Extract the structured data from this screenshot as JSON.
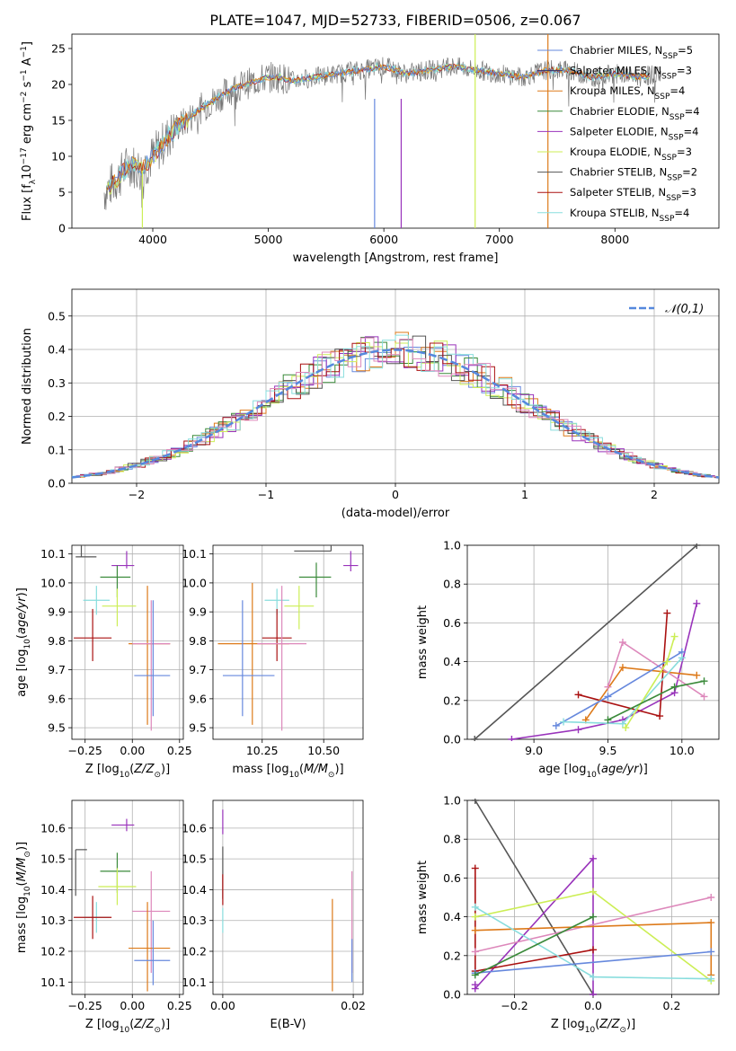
{
  "colors": {
    "Chabrier MILES": "#6688dd",
    "Salpeter MILES": "#33336b",
    "Kroupa MILES": "#dd7a1a",
    "Chabrier ELODIE": "#3a8a3a",
    "Salpeter ELODIE": "#9933bb",
    "Kroupa ELODIE": "#ccee55",
    "Chabrier STELIB": "#555555",
    "Salpeter STELIB": "#aa1111",
    "Kroupa STELIB": "#88dddd",
    "pink": "#dd88bb",
    "gaussian": "#5588dd",
    "grid": "#b0b0b0"
  },
  "chart_data": [
    {
      "id": "spectrum",
      "type": "line",
      "title": "PLATE=1047, MJD=52733, FIBERID=0506, z=0.067",
      "xlabel": "wavelength [Angstrom, rest frame]",
      "ylabel": "Flux [f_λ 10^-17 erg cm^-2 s^-1 A^-1]",
      "xlim": [
        3300,
        8900
      ],
      "ylim": [
        0,
        27
      ],
      "xticks": [
        4000,
        5000,
        6000,
        7000,
        8000
      ],
      "yticks": [
        0,
        5,
        10,
        15,
        20,
        25
      ],
      "legend_position": "top-right",
      "legend": [
        {
          "name": "Chabrier MILES",
          "nssp": "5"
        },
        {
          "name": "Salpeter MILES",
          "nssp": "3"
        },
        {
          "name": "Kroupa MILES",
          "nssp": "4"
        },
        {
          "name": "Chabrier ELODIE",
          "nssp": "4"
        },
        {
          "name": "Salpeter ELODIE",
          "nssp": "4"
        },
        {
          "name": "Kroupa ELODIE",
          "nssp": "3"
        },
        {
          "name": "Chabrier STELIB",
          "nssp": "2"
        },
        {
          "name": "Salpeter STELIB",
          "nssp": "3"
        },
        {
          "name": "Kroupa STELIB",
          "nssp": "4"
        }
      ],
      "continuum": [
        [
          3580,
          5
        ],
        [
          3700,
          7
        ],
        [
          3800,
          9
        ],
        [
          3900,
          8
        ],
        [
          4000,
          10
        ],
        [
          4100,
          12
        ],
        [
          4200,
          14
        ],
        [
          4300,
          15
        ],
        [
          4400,
          16.5
        ],
        [
          4500,
          17.5
        ],
        [
          4600,
          18.5
        ],
        [
          4700,
          19.5
        ],
        [
          4800,
          20
        ],
        [
          4900,
          20.5
        ],
        [
          5000,
          21
        ],
        [
          5100,
          21
        ],
        [
          5200,
          20.5
        ],
        [
          5400,
          21
        ],
        [
          5600,
          21.5
        ],
        [
          5800,
          22
        ],
        [
          6000,
          22.5
        ],
        [
          6200,
          21.5
        ],
        [
          6400,
          22
        ],
        [
          6600,
          22.5
        ],
        [
          6800,
          22
        ],
        [
          7000,
          21.5
        ],
        [
          7200,
          21
        ],
        [
          7400,
          22
        ],
        [
          7600,
          22
        ],
        [
          7800,
          21
        ],
        [
          8000,
          21.5
        ],
        [
          8200,
          21
        ],
        [
          8400,
          21.5
        ]
      ]
    },
    {
      "id": "residuals",
      "type": "line",
      "xlabel": "(data-model)/error",
      "ylabel": "Normed distribution",
      "xlim": [
        -2.5,
        2.5
      ],
      "ylim": [
        0,
        0.58
      ],
      "xticks": [
        -2,
        -1,
        0,
        1,
        2
      ],
      "yticks": [
        0.0,
        0.1,
        0.2,
        0.3,
        0.4,
        0.5
      ],
      "legend": "𝒩(0,1)",
      "legend_position": "top-right",
      "gaussian": {
        "mu": 0,
        "sigma": 1
      }
    },
    {
      "id": "age-Z",
      "type": "scatter",
      "xlabel": "Z [log10(Z/Z⊙)]",
      "ylabel": "age [log10(age/yr)]",
      "xlim": [
        -0.32,
        0.27
      ],
      "ylim": [
        9.46,
        10.13
      ],
      "xticks": [
        -0.25,
        0.0,
        0.25
      ],
      "yticks": [
        9.5,
        9.6,
        9.7,
        9.8,
        9.9,
        10.0,
        10.1
      ],
      "points": [
        {
          "c": "Chabrier STELIB",
          "x": -0.27,
          "y": 10.09,
          "dx": [
            0.03,
            0.08
          ],
          "dy": [
            0.0,
            0.05
          ]
        },
        {
          "c": "Salpeter ELODIE",
          "x": -0.03,
          "y": 10.06,
          "dx": [
            0.08,
            0.04
          ],
          "dy": [
            0.01,
            0.05
          ]
        },
        {
          "c": "Chabrier ELODIE",
          "x": -0.08,
          "y": 10.02,
          "dx": [
            0.09,
            0.07
          ],
          "dy": [
            0.07,
            0.04
          ]
        },
        {
          "c": "Kroupa STELIB",
          "x": -0.19,
          "y": 9.94,
          "dx": [
            0.07,
            0.07
          ],
          "dy": [
            0.05,
            0.05
          ]
        },
        {
          "c": "Kroupa ELODIE",
          "x": -0.08,
          "y": 9.92,
          "dx": [
            0.08,
            0.1
          ],
          "dy": [
            0.07,
            0.06
          ]
        },
        {
          "c": "Salpeter STELIB",
          "x": -0.21,
          "y": 9.81,
          "dx": [
            0.1,
            0.1
          ],
          "dy": [
            0.08,
            0.1
          ]
        },
        {
          "c": "Kroupa MILES",
          "x": 0.08,
          "y": 9.79,
          "dx": [
            0.1,
            0.12
          ],
          "dy": [
            0.28,
            0.2
          ]
        },
        {
          "c": "pink",
          "x": 0.1,
          "y": 9.79,
          "dx": [
            0.1,
            0.1
          ],
          "dy": [
            0.3,
            0.15
          ]
        },
        {
          "c": "Chabrier MILES",
          "x": 0.11,
          "y": 9.68,
          "dx": [
            0.1,
            0.09
          ],
          "dy": [
            0.14,
            0.26
          ]
        }
      ]
    },
    {
      "id": "age-mass",
      "type": "scatter",
      "xlabel": "mass [log10(M/M⊙)]",
      "ylabel": "",
      "xlim": [
        10.05,
        10.66
      ],
      "ylim": [
        9.46,
        10.13
      ],
      "xticks": [
        10.25,
        10.5
      ],
      "yticks": [
        9.5,
        9.6,
        9.7,
        9.8,
        9.9,
        10.0,
        10.1
      ],
      "points": [
        {
          "c": "Chabrier STELIB",
          "x": 10.53,
          "y": 10.11,
          "dx": [
            0.15,
            0.0
          ],
          "dy": [
            0.0,
            0.18
          ]
        },
        {
          "c": "Salpeter ELODIE",
          "x": 10.61,
          "y": 10.06,
          "dx": [
            0.03,
            0.03
          ],
          "dy": [
            0.02,
            0.05
          ]
        },
        {
          "c": "Chabrier ELODIE",
          "x": 10.47,
          "y": 10.02,
          "dx": [
            0.07,
            0.06
          ],
          "dy": [
            0.07,
            0.05
          ]
        },
        {
          "c": "Kroupa STELIB",
          "x": 10.31,
          "y": 9.94,
          "dx": [
            0.05,
            0.05
          ],
          "dy": [
            0.05,
            0.04
          ]
        },
        {
          "c": "Kroupa ELODIE",
          "x": 10.4,
          "y": 9.92,
          "dx": [
            0.06,
            0.06
          ],
          "dy": [
            0.08,
            0.07
          ]
        },
        {
          "c": "Salpeter STELIB",
          "x": 10.31,
          "y": 9.81,
          "dx": [
            0.06,
            0.06
          ],
          "dy": [
            0.08,
            0.1
          ]
        },
        {
          "c": "Kroupa MILES",
          "x": 10.21,
          "y": 9.79,
          "dx": [
            0.14,
            0.15
          ],
          "dy": [
            0.28,
            0.21
          ]
        },
        {
          "c": "pink",
          "x": 10.33,
          "y": 9.79,
          "dx": [
            0.1,
            0.1
          ],
          "dy": [
            0.3,
            0.2
          ]
        },
        {
          "c": "Chabrier MILES",
          "x": 10.17,
          "y": 9.68,
          "dx": [
            0.08,
            0.13
          ],
          "dy": [
            0.14,
            0.26
          ]
        }
      ]
    },
    {
      "id": "weight-age",
      "type": "line",
      "xlabel": "age [log10(age/yr)]",
      "ylabel": "mass weight",
      "xlim": [
        8.55,
        10.25
      ],
      "ylim": [
        0,
        1
      ],
      "xticks": [
        9.0,
        9.5,
        10.0
      ],
      "yticks": [
        0.0,
        0.2,
        0.4,
        0.6,
        0.8,
        1.0
      ],
      "series": [
        {
          "c": "Chabrier STELIB",
          "x": [
            8.6,
            10.1
          ],
          "y": [
            0.0,
            1.0
          ]
        },
        {
          "c": "Salpeter ELODIE",
          "x": [
            8.85,
            9.3,
            9.6,
            9.95,
            10.1
          ],
          "y": [
            0.0,
            0.05,
            0.1,
            0.24,
            0.7
          ]
        },
        {
          "c": "Salpeter STELIB",
          "x": [
            9.3,
            9.85,
            9.9
          ],
          "y": [
            0.23,
            0.12,
            0.65
          ]
        },
        {
          "c": "Kroupa MILES",
          "x": [
            9.35,
            9.6,
            10.1
          ],
          "y": [
            0.1,
            0.37,
            0.33
          ]
        },
        {
          "c": "pink",
          "x": [
            9.5,
            9.6,
            10.15
          ],
          "y": [
            0.27,
            0.5,
            0.22
          ]
        },
        {
          "c": "Chabrier MILES",
          "x": [
            9.15,
            9.5,
            10.0
          ],
          "y": [
            0.07,
            0.22,
            0.45
          ]
        },
        {
          "c": "Kroupa STELIB",
          "x": [
            9.2,
            9.6,
            10.0
          ],
          "y": [
            0.09,
            0.08,
            0.42
          ]
        },
        {
          "c": "Kroupa ELODIE",
          "x": [
            9.62,
            9.9,
            9.95
          ],
          "y": [
            0.06,
            0.4,
            0.53
          ]
        },
        {
          "c": "Chabrier ELODIE",
          "x": [
            9.5,
            9.95,
            10.15
          ],
          "y": [
            0.1,
            0.27,
            0.3
          ]
        }
      ]
    },
    {
      "id": "mass-Z",
      "type": "scatter",
      "xlabel": "Z [log10(Z/Z⊙)]",
      "ylabel": "mass [log10(M/M⊙)]",
      "xlim": [
        -0.32,
        0.27
      ],
      "ylim": [
        10.06,
        10.69
      ],
      "xticks": [
        -0.25,
        0.0,
        0.25
      ],
      "yticks": [
        10.1,
        10.2,
        10.3,
        10.4,
        10.5,
        10.6
      ],
      "points": [
        {
          "c": "Salpeter ELODIE",
          "x": -0.03,
          "y": 10.61,
          "dx": [
            0.08,
            0.04
          ],
          "dy": [
            0.02,
            0.02
          ]
        },
        {
          "c": "Chabrier STELIB",
          "x": -0.3,
          "y": 10.53,
          "dx": [
            0.0,
            0.06
          ],
          "dy": [
            0.15,
            0.0
          ]
        },
        {
          "c": "Chabrier ELODIE",
          "x": -0.08,
          "y": 10.46,
          "dx": [
            0.09,
            0.07
          ],
          "dy": [
            0.07,
            0.06
          ]
        },
        {
          "c": "Kroupa ELODIE",
          "x": -0.08,
          "y": 10.41,
          "dx": [
            0.1,
            0.1
          ],
          "dy": [
            0.06,
            0.06
          ]
        },
        {
          "c": "Kroupa STELIB",
          "x": -0.19,
          "y": 10.31,
          "dx": [
            0.07,
            0.07
          ],
          "dy": [
            0.05,
            0.05
          ]
        },
        {
          "c": "Salpeter STELIB",
          "x": -0.21,
          "y": 10.31,
          "dx": [
            0.1,
            0.1
          ],
          "dy": [
            0.07,
            0.07
          ]
        },
        {
          "c": "pink",
          "x": 0.1,
          "y": 10.33,
          "dx": [
            0.1,
            0.1
          ],
          "dy": [
            0.2,
            0.13
          ]
        },
        {
          "c": "Kroupa MILES",
          "x": 0.08,
          "y": 10.21,
          "dx": [
            0.1,
            0.12
          ],
          "dy": [
            0.14,
            0.15
          ]
        },
        {
          "c": "Chabrier MILES",
          "x": 0.11,
          "y": 10.17,
          "dx": [
            0.1,
            0.09
          ],
          "dy": [
            0.08,
            0.13
          ]
        }
      ]
    },
    {
      "id": "mass-EBV",
      "type": "scatter",
      "xlabel": "E(B-V)",
      "ylabel": "",
      "xlim": [
        -0.0015,
        0.0215
      ],
      "ylim": [
        10.06,
        10.69
      ],
      "xticks": [
        0.0,
        0.02
      ],
      "yticks": [
        10.1,
        10.2,
        10.3,
        10.4,
        10.5,
        10.6
      ],
      "points": [
        {
          "c": "Salpeter ELODIE",
          "x": 0.0,
          "y": 10.61,
          "dx": [
            0,
            0
          ],
          "dy": [
            0.03,
            0.05
          ]
        },
        {
          "c": "Chabrier STELIB",
          "x": 0.0,
          "y": 10.47,
          "dx": [
            0,
            0
          ],
          "dy": [
            0.1,
            0.07
          ]
        },
        {
          "c": "Salpeter STELIB",
          "x": 0.0,
          "y": 10.4,
          "dx": [
            0,
            0
          ],
          "dy": [
            0.05,
            0.05
          ]
        },
        {
          "c": "Kroupa STELIB",
          "x": 0.0,
          "y": 10.3,
          "dx": [
            0,
            0
          ],
          "dy": [
            0.04,
            0.04
          ]
        },
        {
          "c": "Kroupa MILES",
          "x": 0.0168,
          "y": 10.22,
          "dx": [
            0,
            0
          ],
          "dy": [
            0.15,
            0.15
          ]
        },
        {
          "c": "pink",
          "x": 0.0198,
          "y": 10.33,
          "dx": [
            0,
            0
          ],
          "dy": [
            0.2,
            0.13
          ]
        },
        {
          "c": "Chabrier MILES",
          "x": 0.0198,
          "y": 10.17,
          "dx": [
            0,
            0
          ],
          "dy": [
            0.07,
            0.07
          ]
        }
      ]
    },
    {
      "id": "weight-Z",
      "type": "line",
      "xlabel": "Z [log10(Z/Z⊙)]",
      "ylabel": "mass weight",
      "xlim": [
        -0.32,
        0.32
      ],
      "ylim": [
        0,
        1
      ],
      "xticks": [
        -0.2,
        0.0,
        0.2
      ],
      "yticks": [
        0.0,
        0.2,
        0.4,
        0.6,
        0.8,
        1.0
      ],
      "series": [
        {
          "c": "Chabrier STELIB",
          "x": [
            -0.3,
            0.0
          ],
          "y": [
            1.0,
            0.0
          ]
        },
        {
          "c": "Salpeter ELODIE",
          "x": [
            -0.3,
            -0.3,
            0.0,
            0.0
          ],
          "y": [
            0.05,
            0.03,
            0.7,
            0.0
          ]
        },
        {
          "c": "Salpeter STELIB",
          "x": [
            -0.3,
            -0.3,
            0.0
          ],
          "y": [
            0.65,
            0.12,
            0.23
          ]
        },
        {
          "c": "Kroupa ELODIE",
          "x": [
            -0.3,
            0.0,
            0.3
          ],
          "y": [
            0.4,
            0.53,
            0.07
          ]
        },
        {
          "c": "pink",
          "x": [
            -0.3,
            0.3
          ],
          "y": [
            0.22,
            0.5
          ]
        },
        {
          "c": "Kroupa MILES",
          "x": [
            -0.3,
            0.3,
            0.3
          ],
          "y": [
            0.33,
            0.37,
            0.1
          ]
        },
        {
          "c": "Kroupa STELIB",
          "x": [
            -0.3,
            0.0,
            0.3
          ],
          "y": [
            0.45,
            0.09,
            0.08
          ]
        },
        {
          "c": "Chabrier MILES",
          "x": [
            -0.3,
            0.3
          ],
          "y": [
            0.11,
            0.22
          ]
        },
        {
          "c": "Chabrier ELODIE",
          "x": [
            -0.3,
            0.0
          ],
          "y": [
            0.1,
            0.4
          ]
        }
      ]
    }
  ]
}
